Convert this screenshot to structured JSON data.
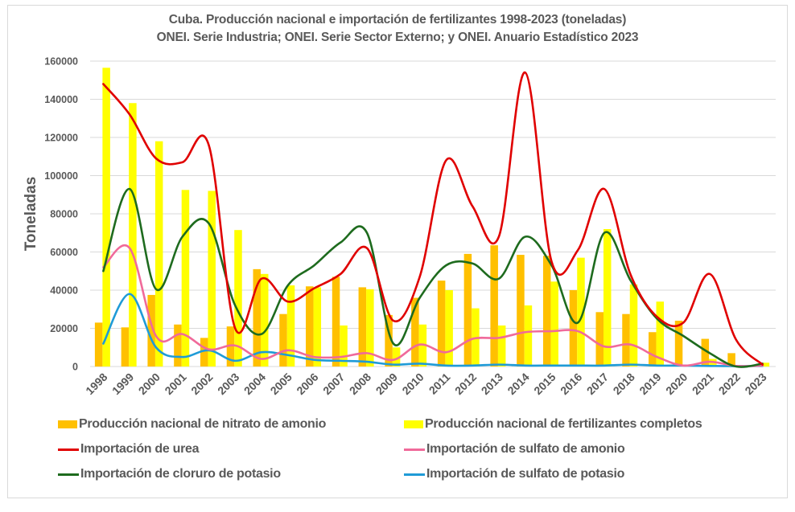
{
  "chart_data": {
    "type": "bar+line",
    "title": "Cuba. Producción nacional e importación de fertilizantes 1998-2023 (toneladas)",
    "subtitle": "ONEI. Serie Industria; ONEI. Serie Sector Externo; y ONEI. Anuario Estadístico 2023",
    "xlabel": "",
    "ylabel": "Toneladas",
    "ylim": [
      0,
      160000
    ],
    "yticks": [
      0,
      20000,
      40000,
      60000,
      80000,
      100000,
      120000,
      140000,
      160000
    ],
    "ytick_labels": [
      "0",
      "20000",
      "40000",
      "60000",
      "80000",
      "100000",
      "120000",
      "140000",
      "160000"
    ],
    "grid": true,
    "legend_position": "bottom",
    "categories": [
      "1998",
      "1999",
      "2000",
      "2001",
      "2002",
      "2003",
      "2004",
      "2005",
      "2006",
      "2007",
      "2008",
      "2009",
      "2010",
      "2011",
      "2012",
      "2013",
      "2014",
      "2015",
      "2016",
      "2017",
      "2018",
      "2019",
      "2020",
      "2021",
      "2022",
      "2023"
    ],
    "series": [
      {
        "name": "Producción nacional de nitrato de amonio",
        "kind": "bar",
        "color": "#FFC000",
        "values": [
          23000,
          20500,
          37500,
          22000,
          15000,
          21000,
          51000,
          27500,
          42000,
          47000,
          41500,
          27000,
          36000,
          45000,
          59000,
          63500,
          58500,
          58000,
          40000,
          28500,
          27500,
          18000,
          24000,
          14500,
          7000,
          0
        ]
      },
      {
        "name": "Producción nacional de fertilizantes completos",
        "kind": "bar",
        "color": "#FFFF00",
        "values": [
          156500,
          138000,
          118000,
          92500,
          92000,
          71500,
          48500,
          42500,
          41500,
          21500,
          40500,
          10000,
          22000,
          40000,
          30500,
          21500,
          32000,
          44500,
          57000,
          72000,
          43000,
          34000,
          500,
          4000,
          0,
          2000
        ]
      },
      {
        "name": "Importación de urea",
        "kind": "line",
        "color": "#E00000",
        "values": [
          148000,
          132000,
          109000,
          107000,
          116000,
          20000,
          46000,
          34000,
          41000,
          48500,
          62000,
          24000,
          47000,
          108000,
          84000,
          68000,
          154000,
          55000,
          61000,
          93000,
          48000,
          26000,
          23000,
          48500,
          14000,
          1000
        ]
      },
      {
        "name": "Importación de sulfato de amonio",
        "kind": "line",
        "color": "#F06A9A",
        "values": [
          52000,
          62000,
          16000,
          17000,
          9000,
          11000,
          4000,
          8500,
          5000,
          5000,
          7000,
          3500,
          11500,
          7500,
          14500,
          15000,
          18000,
          18500,
          18500,
          10500,
          11500,
          5000,
          500,
          2500,
          300,
          500
        ]
      },
      {
        "name": "Importación de cloruro de potasio",
        "kind": "line",
        "color": "#1E6B1E",
        "values": [
          50000,
          93000,
          40500,
          68000,
          75000,
          32000,
          17000,
          42500,
          53000,
          65000,
          70000,
          12000,
          36000,
          53000,
          54000,
          46000,
          68000,
          53000,
          23000,
          70000,
          45000,
          25000,
          16000,
          7000,
          0,
          1500
        ]
      },
      {
        "name": "Importación de sulfato de potasio",
        "kind": "line",
        "color": "#1F9BD7",
        "values": [
          12000,
          38000,
          10000,
          5000,
          8500,
          3000,
          7500,
          6000,
          3500,
          3000,
          2500,
          1000,
          1500,
          500,
          500,
          1000,
          500,
          500,
          500,
          500,
          1000,
          500,
          500,
          300,
          200,
          300
        ]
      }
    ]
  }
}
